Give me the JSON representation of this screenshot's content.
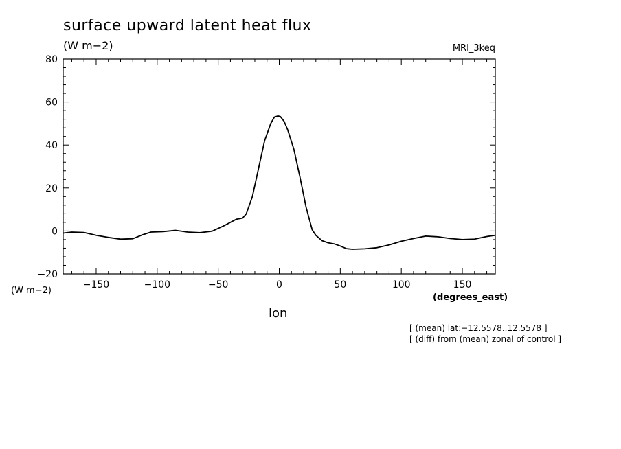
{
  "header": {
    "title": "surface upward latent heat flux",
    "units": "(W m−2)",
    "model": "MRI_3keq"
  },
  "axes": {
    "y_units_label": "(W m−2)",
    "x_units_label": "(degrees_east)",
    "x_label": "lon"
  },
  "notes": [
    "[ (mean) lat:−12.5578..12.5578 ]",
    "[ (diff) from (mean) zonal of control ]"
  ],
  "chart_data": {
    "type": "line",
    "title": "surface upward latent heat flux",
    "xlabel": "lon",
    "ylabel": "(W m−2)",
    "xlim": [
      -177,
      177
    ],
    "ylim": [
      -20,
      80
    ],
    "xticks": [
      -150,
      -100,
      -50,
      0,
      50,
      100,
      150
    ],
    "xtick_labels": [
      "−150",
      "−100",
      "−50",
      "0",
      "50",
      "100",
      "150"
    ],
    "yticks": [
      -20,
      0,
      20,
      40,
      60,
      80
    ],
    "ytick_labels": [
      "−20",
      "0",
      "20",
      "40",
      "60",
      "80"
    ],
    "grid": false,
    "series": [
      {
        "x": [
          -177,
          -170,
          -160,
          -150,
          -140,
          -130,
          -120,
          -112,
          -105,
          -95,
          -85,
          -75,
          -65,
          -55,
          -45,
          -35,
          -30,
          -27,
          -22,
          -17,
          -12,
          -7,
          -4,
          -1,
          1,
          4,
          7,
          12,
          17,
          22,
          27,
          30,
          35,
          40,
          45,
          50,
          55,
          60,
          70,
          80,
          90,
          100,
          110,
          120,
          130,
          140,
          150,
          160,
          170,
          177
        ],
        "y": [
          -1.0,
          -0.5,
          -0.7,
          -2.0,
          -3.0,
          -3.8,
          -3.6,
          -1.8,
          -0.5,
          -0.3,
          0.3,
          -0.5,
          -0.8,
          -0.1,
          2.5,
          5.5,
          6.0,
          8.0,
          16.0,
          29.0,
          42.0,
          50.0,
          53.0,
          53.5,
          53.2,
          51.0,
          47.0,
          38.0,
          25.0,
          11.0,
          0.5,
          -2.0,
          -4.5,
          -5.5,
          -6.0,
          -7.0,
          -8.2,
          -8.5,
          -8.3,
          -7.8,
          -6.5,
          -4.8,
          -3.5,
          -2.4,
          -2.7,
          -3.5,
          -4.0,
          -3.8,
          -2.6,
          -2.0
        ]
      }
    ]
  }
}
